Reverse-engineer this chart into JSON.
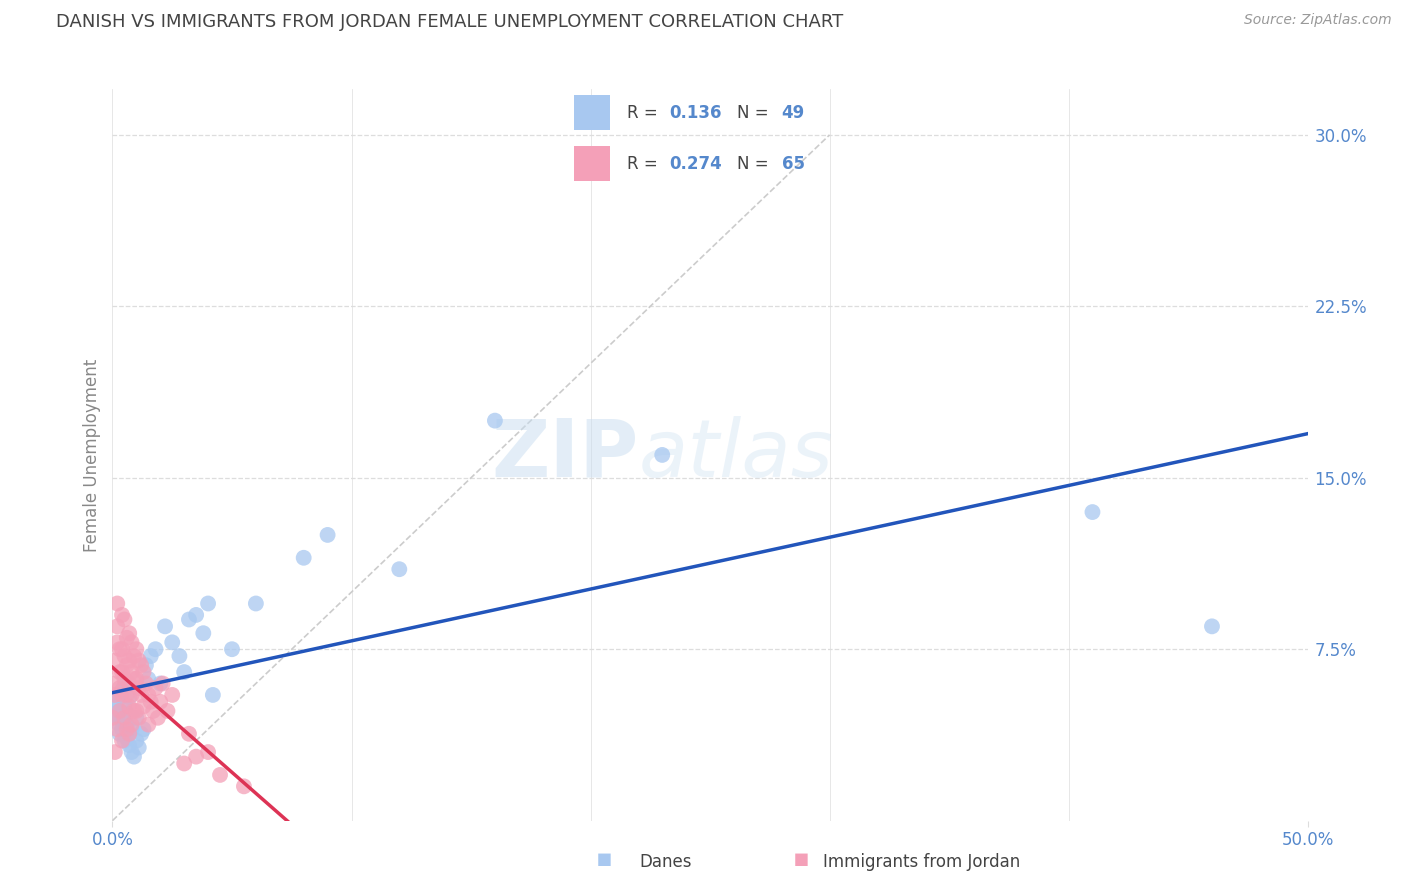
{
  "title": "DANISH VS IMMIGRANTS FROM JORDAN FEMALE UNEMPLOYMENT CORRELATION CHART",
  "source": "Source: ZipAtlas.com",
  "ylabel": "Female Unemployment",
  "xlim": [
    0.0,
    0.5
  ],
  "ylim": [
    0.0,
    0.32
  ],
  "yticks_right": [
    0.075,
    0.15,
    0.225,
    0.3
  ],
  "ytick_labels_right": [
    "7.5%",
    "15.0%",
    "22.5%",
    "30.0%"
  ],
  "xtick_labels": [
    "0.0%",
    "",
    "",
    "",
    "",
    "50.0%"
  ],
  "danes_color": "#a8c8f0",
  "jordan_color": "#f4a0b8",
  "danes_line_color": "#2255bb",
  "jordan_line_color": "#dd3355",
  "diagonal_color": "#cccccc",
  "R_danes": "0.136",
  "N_danes": "49",
  "R_jordan": "0.274",
  "N_jordan": "65",
  "danes_x": [
    0.001,
    0.002,
    0.002,
    0.002,
    0.003,
    0.003,
    0.003,
    0.004,
    0.004,
    0.004,
    0.005,
    0.005,
    0.005,
    0.006,
    0.006,
    0.006,
    0.007,
    0.007,
    0.008,
    0.008,
    0.009,
    0.01,
    0.01,
    0.011,
    0.012,
    0.013,
    0.014,
    0.015,
    0.016,
    0.018,
    0.02,
    0.022,
    0.025,
    0.028,
    0.03,
    0.032,
    0.035,
    0.038,
    0.04,
    0.042,
    0.05,
    0.06,
    0.08,
    0.09,
    0.12,
    0.16,
    0.23,
    0.41,
    0.46
  ],
  "danes_y": [
    0.05,
    0.046,
    0.052,
    0.043,
    0.048,
    0.038,
    0.055,
    0.04,
    0.057,
    0.044,
    0.035,
    0.051,
    0.059,
    0.042,
    0.036,
    0.047,
    0.054,
    0.033,
    0.04,
    0.03,
    0.028,
    0.045,
    0.035,
    0.032,
    0.038,
    0.04,
    0.068,
    0.062,
    0.072,
    0.075,
    0.06,
    0.085,
    0.078,
    0.072,
    0.065,
    0.088,
    0.09,
    0.082,
    0.095,
    0.055,
    0.075,
    0.095,
    0.115,
    0.125,
    0.11,
    0.175,
    0.16,
    0.135,
    0.085
  ],
  "jordan_x": [
    0.0,
    0.0,
    0.001,
    0.001,
    0.001,
    0.002,
    0.002,
    0.002,
    0.002,
    0.003,
    0.003,
    0.003,
    0.003,
    0.004,
    0.004,
    0.004,
    0.004,
    0.004,
    0.005,
    0.005,
    0.005,
    0.005,
    0.006,
    0.006,
    0.006,
    0.006,
    0.007,
    0.007,
    0.007,
    0.007,
    0.007,
    0.008,
    0.008,
    0.008,
    0.008,
    0.009,
    0.009,
    0.009,
    0.01,
    0.01,
    0.01,
    0.011,
    0.011,
    0.011,
    0.012,
    0.012,
    0.013,
    0.013,
    0.014,
    0.015,
    0.015,
    0.016,
    0.017,
    0.018,
    0.019,
    0.02,
    0.021,
    0.023,
    0.025,
    0.03,
    0.032,
    0.035,
    0.04,
    0.045,
    0.055
  ],
  "jordan_y": [
    0.045,
    0.06,
    0.07,
    0.055,
    0.03,
    0.085,
    0.095,
    0.078,
    0.04,
    0.065,
    0.075,
    0.058,
    0.048,
    0.09,
    0.075,
    0.065,
    0.055,
    0.035,
    0.088,
    0.072,
    0.062,
    0.045,
    0.08,
    0.068,
    0.055,
    0.04,
    0.082,
    0.07,
    0.06,
    0.05,
    0.038,
    0.078,
    0.065,
    0.055,
    0.042,
    0.072,
    0.062,
    0.048,
    0.075,
    0.062,
    0.048,
    0.07,
    0.058,
    0.045,
    0.068,
    0.055,
    0.065,
    0.05,
    0.06,
    0.055,
    0.042,
    0.052,
    0.048,
    0.058,
    0.045,
    0.052,
    0.06,
    0.048,
    0.055,
    0.025,
    0.038,
    0.028,
    0.03,
    0.02,
    0.015
  ],
  "watermark_zip": "ZIP",
  "watermark_atlas": "atlas",
  "background_color": "#ffffff",
  "grid_color": "#dddddd",
  "title_color": "#444444",
  "tick_color": "#5588cc",
  "source_color": "#999999",
  "ylabel_color": "#888888"
}
